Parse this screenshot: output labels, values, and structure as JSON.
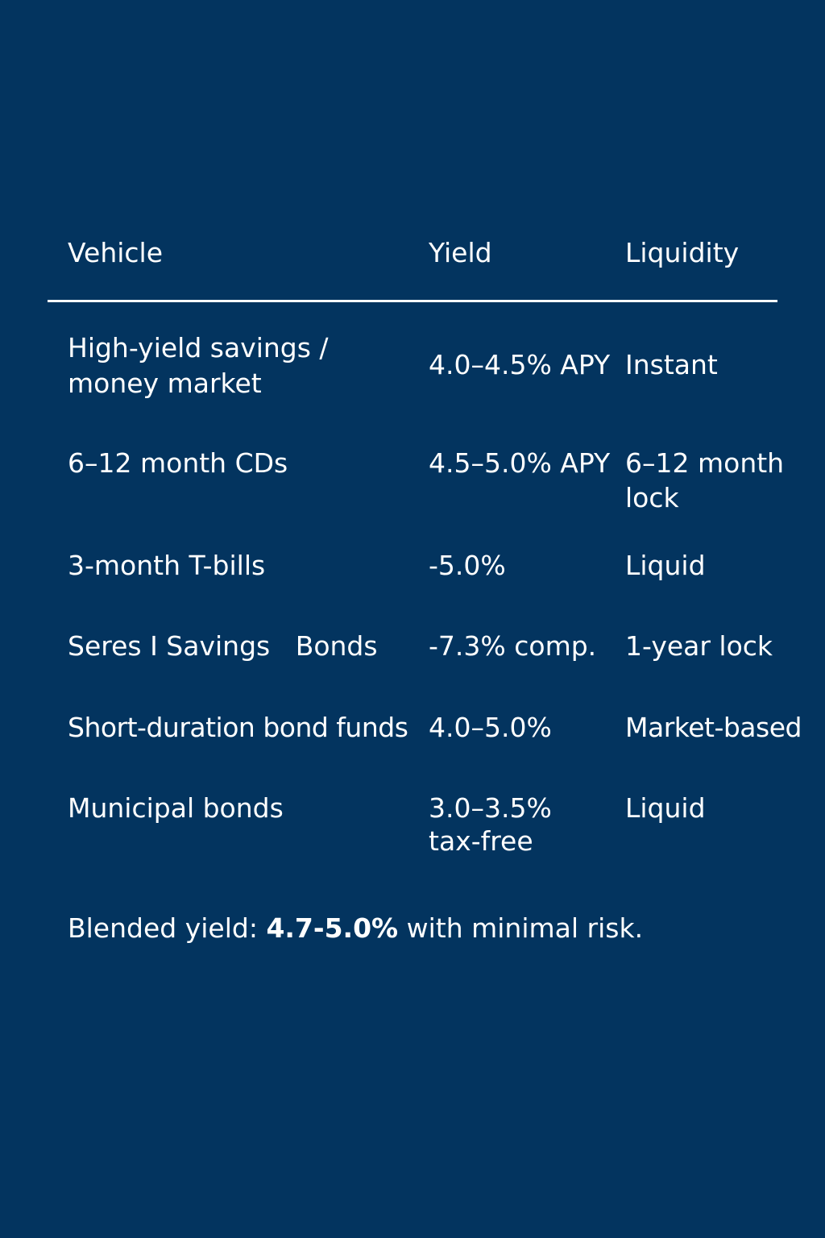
{
  "table": {
    "headers": {
      "vehicle": "Vehicle",
      "yield": "Yield",
      "liquidity": "Liquidity"
    },
    "rows": [
      {
        "vehicle": [
          "High-yield savings /",
          "money market"
        ],
        "yield": [
          "4.0–4.5% APY"
        ],
        "liquidity": [
          "Instant"
        ]
      },
      {
        "vehicle": [
          "6–12 month CDs"
        ],
        "yield": [
          "4.5–5.0% APY"
        ],
        "liquidity": [
          "6–12 month",
          "lock"
        ]
      },
      {
        "vehicle": [
          "3-month T-bills"
        ],
        "yield": [
          "-5.0%"
        ],
        "liquidity": [
          "Liquid"
        ]
      },
      {
        "vehicle": [
          "Seres I Savings   Bonds"
        ],
        "yield": [
          "-7.3% comp."
        ],
        "liquidity": [
          "1-year lock"
        ]
      },
      {
        "vehicle": [
          "Short-duration bond funds"
        ],
        "yield": [
          "4.0–5.0%"
        ],
        "liquidity": [
          "Market-based"
        ]
      },
      {
        "vehicle": [
          "Municipal bonds"
        ],
        "yield": [
          "3.0–3.5%",
          "tax-free"
        ],
        "liquidity": [
          "Liquid"
        ]
      }
    ]
  },
  "summary": {
    "prefix": "Blended yield: ",
    "highlight": "4.7-5.0%",
    "suffix": " with minimal risk."
  }
}
